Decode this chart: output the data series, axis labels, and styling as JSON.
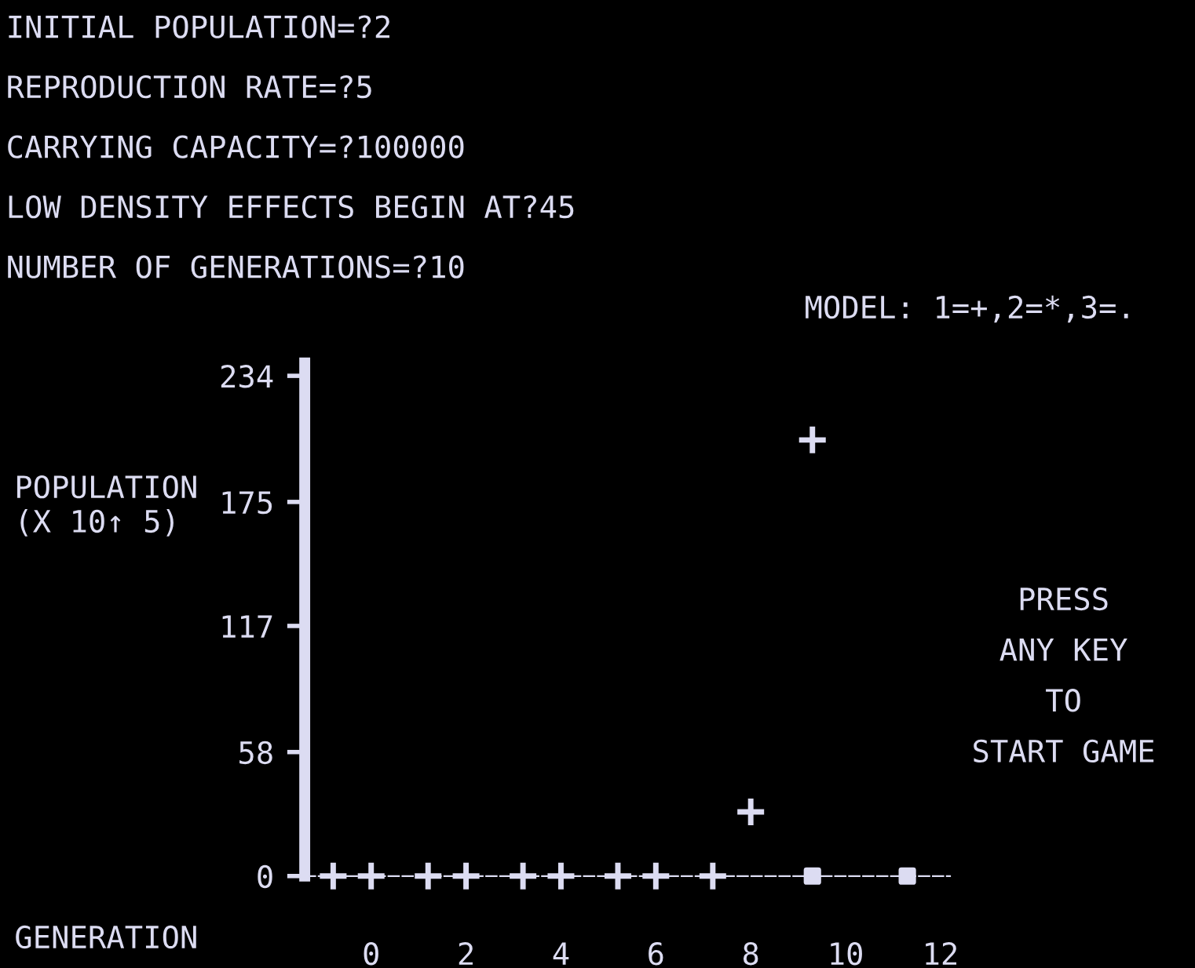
{
  "chart_data": {
    "type": "scatter",
    "annotations": [
      "INITIAL POPULATION=?2",
      "REPRODUCTION RATE=?5",
      "CARRYING CAPACITY=?100000",
      "LOW DENSITY EFFECTS BEGIN AT?45",
      "NUMBER OF GENERATIONS=?10",
      "MODEL: 1=+,2=*,3=.",
      "PRESS\nANY KEY\nTO\nSTART GAME"
    ],
    "ylabel": "POPULATION\n(X 10↑ 5)",
    "xlabel": "GENERATION",
    "series": [
      {
        "color": "#dcdcf2",
        "marker": "cross",
        "x": [
          -0.8,
          0,
          1.2,
          2,
          3.2,
          4,
          5.2,
          6,
          7.2,
          8,
          9.3
        ],
        "values": [
          0,
          0,
          0,
          0,
          0,
          0,
          0,
          0,
          0,
          30,
          204
        ]
      },
      {
        "color": "#dcdcf2",
        "marker": "square",
        "x": [
          9.3,
          11.3
        ],
        "values": [
          0,
          0
        ]
      }
    ],
    "xlim": [
      -1.4,
      12.2
    ],
    "ylim": [
      0,
      240
    ],
    "xticks": [
      0,
      2,
      4,
      6,
      8,
      10,
      12
    ],
    "yticks": [
      0,
      58,
      117,
      175,
      234
    ],
    "grid": false,
    "legend": false
  }
}
